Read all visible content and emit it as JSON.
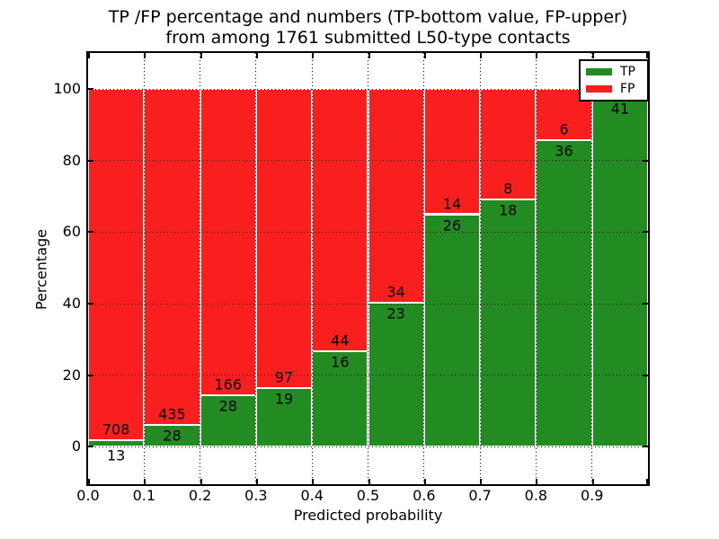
{
  "title": {
    "line1": "TP /FP percentage and numbers (TP-bottom value, FP-upper)",
    "line2": "from among 1761 submitted L50-type contacts"
  },
  "x_axis": {
    "label": "Predicted probability",
    "ticks": [
      "0.0",
      "0.1",
      "0.2",
      "0.3",
      "0.4",
      "0.5",
      "0.6",
      "0.7",
      "0.8",
      "0.9"
    ]
  },
  "y_axis": {
    "label": "Percentage",
    "ticks": [
      "0",
      "20",
      "40",
      "60",
      "80",
      "100"
    ]
  },
  "legend": {
    "items": [
      {
        "label": "TP",
        "color": "#228b22"
      },
      {
        "label": "FP",
        "color": "#fa1f1f"
      }
    ]
  },
  "chart_data": {
    "type": "bar",
    "stacked": true,
    "title": "TP /FP percentage and numbers (TP-bottom value, FP-upper) from among 1761 submitted L50-type contacts",
    "xlabel": "Predicted probability",
    "ylabel": "Percentage",
    "xlim": [
      0.0,
      1.0
    ],
    "ylim": [
      -10.5,
      110.1
    ],
    "bin_width": 0.1,
    "bin_starts": [
      0.0,
      0.1,
      0.2,
      0.3,
      0.4,
      0.5,
      0.6,
      0.7,
      0.8,
      0.9
    ],
    "grid": "dotted-both-axes",
    "legend_position": "upper-right",
    "series": [
      {
        "name": "TP",
        "color": "#228b22",
        "counts": [
          13,
          28,
          28,
          19,
          16,
          23,
          26,
          18,
          36,
          41
        ],
        "percent": [
          1.8,
          6.05,
          14.43,
          16.38,
          26.67,
          40.35,
          65.0,
          69.23,
          85.71,
          97.62
        ]
      },
      {
        "name": "FP",
        "color": "#fa1f1f",
        "counts": [
          708,
          435,
          166,
          97,
          44,
          34,
          14,
          8,
          6,
          null
        ],
        "percent": [
          98.2,
          93.95,
          85.57,
          83.62,
          73.33,
          59.65,
          35.0,
          30.77,
          14.29,
          2.38
        ]
      }
    ]
  }
}
